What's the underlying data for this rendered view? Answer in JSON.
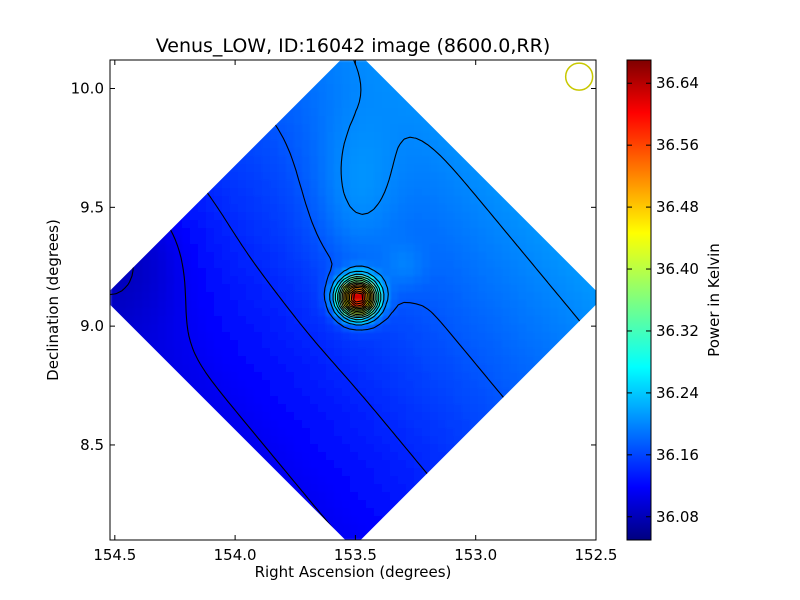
{
  "chart_data": {
    "type": "heatmap",
    "title": "Venus_LOW, ID:16042 image (8600.0,RR)",
    "xlabel": "Right Ascension (degrees)",
    "ylabel": "Declination (degrees)",
    "xlim": [
      154.52,
      152.5
    ],
    "ylim": [
      8.1,
      10.12
    ],
    "x_ticks": [
      {
        "value": 154.5,
        "label": "154.5"
      },
      {
        "value": 154.0,
        "label": "154.0"
      },
      {
        "value": 153.5,
        "label": "153.5"
      },
      {
        "value": 153.0,
        "label": "153.0"
      },
      {
        "value": 152.5,
        "label": "152.5"
      }
    ],
    "y_ticks": [
      {
        "value": 8.5,
        "label": "8.5"
      },
      {
        "value": 9.0,
        "label": "9.0"
      },
      {
        "value": 9.5,
        "label": "9.5"
      },
      {
        "value": 10.0,
        "label": "10.0"
      }
    ],
    "colorbar": {
      "label": "Power in Kelvin",
      "range": [
        36.05,
        36.67
      ],
      "colormap": "jet",
      "ticks": [
        {
          "value": 36.08,
          "label": "36.08"
        },
        {
          "value": 36.16,
          "label": "36.16"
        },
        {
          "value": 36.24,
          "label": "36.24"
        },
        {
          "value": 36.32,
          "label": "36.32"
        },
        {
          "value": 36.4,
          "label": "36.40"
        },
        {
          "value": 36.48,
          "label": "36.48"
        },
        {
          "value": 36.56,
          "label": "36.56"
        },
        {
          "value": 36.64,
          "label": "36.64"
        }
      ]
    },
    "coverage_center": {
      "ra": 153.51,
      "dec": 9.12
    },
    "peak": {
      "ra": 153.49,
      "dec": 9.12,
      "value": 36.66
    },
    "background_min": 36.07,
    "beam_marker": {
      "ra": 152.57,
      "dec": 10.05
    },
    "grid": false,
    "legend": "none"
  }
}
